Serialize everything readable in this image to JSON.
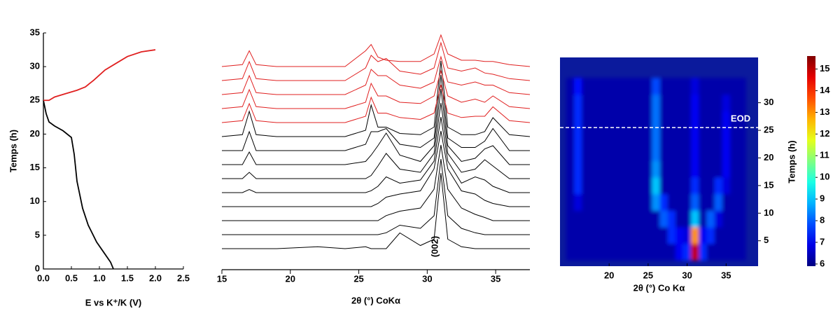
{
  "chart_data": [
    {
      "type": "line",
      "xlabel": "E vs K⁺/K (V)",
      "ylabel": "Temps (h)",
      "xlim": [
        0,
        2.5
      ],
      "xticks": [
        {
          "value": 0,
          "label": "0.0"
        },
        0.5,
        {
          "value": 1,
          "label": "1.0"
        },
        1.5,
        {
          "value": 2,
          "label": "2.0"
        },
        2.5
      ],
      "ylim": [
        0,
        35
      ],
      "yticks": [
        0,
        5,
        10,
        15,
        20,
        25,
        30,
        35
      ],
      "series": [
        {
          "color": "#000000",
          "x": [
            0,
            0.05,
            0.1,
            0.2,
            0.35,
            0.5,
            0.55,
            0.6,
            0.7,
            0.8,
            0.95,
            1.1,
            1.2,
            1.25
          ],
          "values": [
            25,
            23,
            21.8,
            21.2,
            20.5,
            19.5,
            17,
            13,
            9,
            6.5,
            4,
            2.2,
            1,
            0
          ]
        },
        {
          "color": "#e02020",
          "x": [
            0,
            0.1,
            0.2,
            0.4,
            0.6,
            0.75,
            0.9,
            1.1,
            1.3,
            1.5,
            1.75,
            2.0
          ],
          "values": [
            25,
            25,
            25.5,
            26,
            26.5,
            27,
            28,
            29.5,
            30.5,
            31.5,
            32.2,
            32.5
          ]
        }
      ]
    },
    {
      "type": "ridge",
      "xlabel": "2θ (°) CoKα",
      "annotation": "(002)",
      "xlim": [
        15,
        37.5
      ],
      "xticks": [
        15,
        20,
        25,
        30,
        35
      ],
      "x": [
        15,
        16.5,
        17,
        17.5,
        19,
        22,
        24,
        25.5,
        25.9,
        26.4,
        27,
        28,
        29.5,
        30.5,
        31,
        31.5,
        32.5,
        33.5,
        34.2,
        34.8,
        36,
        37.5
      ],
      "series": [
        {
          "color": "#000000",
          "values": [
            0,
            0,
            0,
            0,
            0,
            0.3,
            0,
            0.3,
            0,
            0,
            0,
            2.5,
            0.5,
            1.5,
            12,
            1.5,
            0.3,
            0,
            0,
            0,
            0,
            0
          ]
        },
        {
          "color": "#000000",
          "values": [
            0,
            0,
            0,
            0,
            0,
            0,
            0,
            0,
            0,
            0,
            0.3,
            1.5,
            1,
            3,
            12,
            3,
            1,
            0.3,
            0,
            0,
            0,
            0
          ]
        },
        {
          "color": "#000000",
          "values": [
            0,
            0,
            0,
            0,
            0,
            0,
            0,
            0,
            0,
            0,
            0.8,
            1.5,
            2,
            5,
            12,
            5,
            2,
            1,
            0.5,
            0,
            0,
            0
          ]
        },
        {
          "color": "#000000",
          "values": [
            0,
            0,
            0,
            0,
            0,
            0,
            0,
            0,
            0,
            0.5,
            1.5,
            2,
            2.5,
            6,
            12,
            6,
            2.5,
            2,
            1,
            0.5,
            0,
            0
          ]
        },
        {
          "color": "#000000",
          "values": [
            0,
            0,
            0.5,
            0,
            0,
            0,
            0,
            0,
            0.3,
            1,
            2.5,
            1.5,
            2,
            5,
            12,
            5,
            1.5,
            2.5,
            2,
            1,
            0,
            0
          ]
        },
        {
          "color": "#000000",
          "values": [
            0,
            0,
            1,
            0,
            0,
            0,
            0,
            0,
            0.5,
            2,
            4,
            1.5,
            1,
            4,
            12,
            4,
            1,
            1.5,
            3,
            2,
            0,
            0
          ]
        },
        {
          "color": "#000000",
          "values": [
            0,
            0,
            2,
            0,
            0,
            0,
            0,
            0.5,
            1.5,
            3,
            5,
            1.5,
            0.5,
            3,
            12,
            3,
            0.5,
            1,
            2.5,
            3,
            0,
            0
          ]
        },
        {
          "color": "#000000",
          "values": [
            0,
            0,
            3,
            0,
            0,
            0,
            0,
            1,
            3,
            3,
            3.5,
            1,
            0.5,
            2,
            12,
            2,
            0.5,
            0.5,
            1.5,
            3.5,
            0,
            0
          ]
        },
        {
          "color": "#000000",
          "values": [
            0,
            0.3,
            4,
            0.3,
            0,
            0,
            0,
            1,
            5,
            1.5,
            1.5,
            0.5,
            0.3,
            1.5,
            12,
            1.5,
            0.3,
            0.3,
            0.8,
            3,
            0.3,
            0
          ]
        },
        {
          "color": "#e02020",
          "values": [
            0,
            0.3,
            3,
            0.3,
            0,
            0,
            0,
            1,
            4,
            1.5,
            1.5,
            0.8,
            0.5,
            1.5,
            6,
            1.5,
            0.8,
            1,
            1,
            2.5,
            0.3,
            0
          ]
        },
        {
          "color": "#e02020",
          "values": [
            0,
            0.3,
            3,
            0.3,
            0,
            0,
            0,
            1,
            4,
            2,
            2,
            1,
            0.8,
            2,
            6,
            2,
            1,
            1.5,
            1,
            2,
            0.3,
            0
          ]
        },
        {
          "color": "#e02020",
          "values": [
            0,
            0.3,
            3,
            0.3,
            0,
            0,
            0,
            1.5,
            4,
            3,
            3,
            1.5,
            1,
            2,
            6,
            2,
            1.5,
            2,
            1.5,
            1.5,
            0.3,
            0
          ]
        },
        {
          "color": "#e02020",
          "values": [
            0,
            0.3,
            3,
            0.3,
            0,
            0,
            0,
            2,
            4,
            3,
            3.5,
            1.5,
            1,
            2,
            6,
            2,
            1.5,
            2,
            1.2,
            1,
            0.3,
            0
          ]
        },
        {
          "color": "#e02020",
          "values": [
            0,
            0.3,
            2.5,
            0.3,
            0,
            0,
            0,
            2.5,
            3.5,
            1.5,
            1,
            0.8,
            0.8,
            2,
            5,
            2,
            1,
            1,
            0.8,
            0.8,
            0.3,
            0
          ]
        }
      ]
    },
    {
      "type": "heatmap",
      "xlabel": "2θ (°) Co Kα",
      "ylabel": "Temps (h)",
      "annotation": "EOD",
      "eod": 25.5,
      "xlim": [
        13.7,
        39.1
      ],
      "xticks": [
        20,
        25,
        30,
        35
      ],
      "ylim": [
        0.4,
        38.2
      ],
      "yticks": [
        5,
        10,
        15,
        20,
        25,
        30
      ],
      "clim": [
        5.9,
        15.6
      ],
      "cticks": [
        6,
        7,
        8,
        9,
        10,
        11,
        12,
        13,
        14,
        15
      ],
      "x": [
        15,
        16,
        17,
        18,
        19,
        20,
        21,
        22,
        23,
        24,
        25,
        26,
        27,
        28,
        29,
        30,
        31,
        32,
        33,
        34,
        35,
        36,
        37
      ],
      "y": [
        3,
        6,
        9,
        12,
        15,
        18,
        21,
        24,
        27,
        30,
        33
      ],
      "z": [
        [
          6.3,
          6.3,
          6.3,
          6.3,
          6.3,
          6.3,
          6.3,
          6.3,
          6.3,
          6.3,
          6.3,
          6.3,
          6.3,
          6.3,
          7,
          7.5,
          15,
          7.5,
          6.3,
          6.3,
          6.3,
          6.3,
          6.3
        ],
        [
          6.3,
          6.3,
          6.3,
          6.3,
          6.3,
          6.3,
          6.3,
          6.3,
          6.3,
          6.3,
          6.3,
          6.3,
          6.3,
          7.5,
          7,
          6.8,
          13,
          7,
          7.5,
          6.3,
          6.3,
          6.3,
          6.3
        ],
        [
          6.3,
          6.3,
          6.3,
          6.3,
          6.3,
          6.3,
          6.3,
          6.3,
          6.3,
          6.3,
          6.3,
          6.3,
          8,
          7.5,
          6.3,
          6.3,
          9,
          6.3,
          8,
          6.8,
          6.3,
          6.3,
          6.3
        ],
        [
          6.3,
          6.8,
          6.3,
          6.3,
          6.3,
          6.3,
          6.3,
          6.3,
          6.3,
          6.3,
          6.3,
          8.5,
          7.5,
          6.3,
          6.3,
          6.3,
          8,
          6.3,
          6.3,
          8,
          6.3,
          6.3,
          6.3
        ],
        [
          6.3,
          7.5,
          6.3,
          6.3,
          6.3,
          6.3,
          6.3,
          6.3,
          6.3,
          6.3,
          6.3,
          9,
          6.3,
          6.3,
          6.3,
          6.3,
          7.5,
          6.3,
          6.3,
          7.5,
          6.8,
          6.3,
          6.3
        ],
        [
          6.3,
          7.5,
          6.3,
          6.3,
          6.3,
          6.3,
          6.3,
          6.3,
          6.3,
          6.3,
          6.3,
          8.5,
          6.3,
          6.3,
          6.3,
          6.3,
          7,
          6.3,
          6.3,
          6.3,
          7,
          6.3,
          6.3
        ],
        [
          6.3,
          7.5,
          6.3,
          6.3,
          6.3,
          6.3,
          6.3,
          6.3,
          6.3,
          6.3,
          6.3,
          8.2,
          6.3,
          6.3,
          6.3,
          6.3,
          7,
          6.3,
          6.3,
          6.3,
          7,
          6.3,
          6.3
        ],
        [
          6.3,
          7.5,
          6.3,
          6.3,
          6.3,
          6.3,
          6.3,
          6.3,
          6.3,
          6.3,
          6.3,
          8.2,
          6.3,
          6.3,
          6.3,
          6.3,
          7,
          6.3,
          6.3,
          6.3,
          7,
          6.3,
          6.3
        ],
        [
          6.3,
          7.5,
          6.3,
          6.3,
          6.3,
          6.3,
          6.3,
          6.3,
          6.3,
          6.3,
          6.3,
          8.2,
          6.3,
          6.3,
          6.3,
          6.3,
          7,
          6.3,
          6.3,
          6.3,
          7,
          6.3,
          6.3
        ],
        [
          6.3,
          7.5,
          6.3,
          6.3,
          6.3,
          6.3,
          6.3,
          6.3,
          6.3,
          6.3,
          6.3,
          8.2,
          6.3,
          6.3,
          6.3,
          6.3,
          7,
          6.3,
          6.3,
          6.3,
          6.8,
          6.3,
          6.3
        ],
        [
          6.3,
          7.2,
          6.3,
          6.3,
          6.3,
          6.3,
          6.3,
          6.3,
          6.3,
          6.3,
          6.3,
          7.8,
          6.3,
          6.3,
          6.3,
          6.3,
          6.8,
          6.3,
          6.3,
          6.3,
          6.3,
          6.3,
          6.3
        ]
      ]
    }
  ]
}
